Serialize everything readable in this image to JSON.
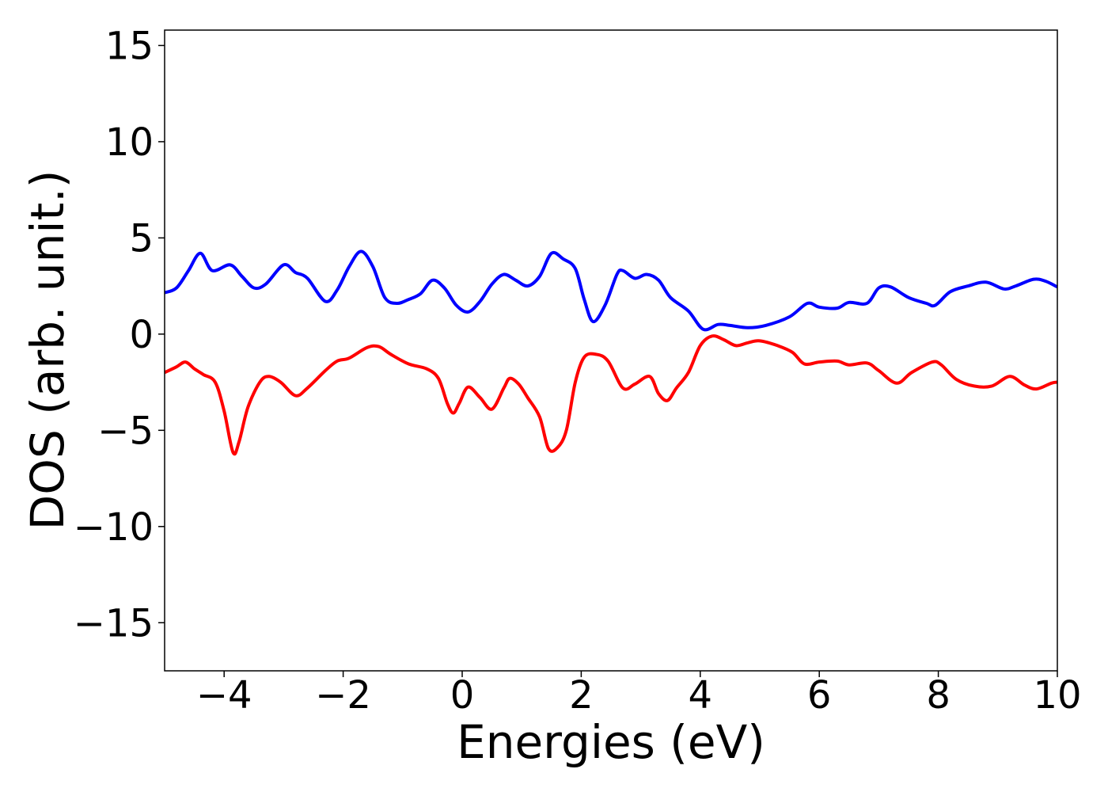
{
  "chart_data": {
    "type": "line",
    "xlabel": "Energies (eV)",
    "ylabel": "DOS (arb. unit.)",
    "xlim": [
      -5,
      10
    ],
    "ylim": [
      -17.5,
      15.8
    ],
    "xticks": [
      -4,
      -2,
      0,
      2,
      4,
      6,
      8,
      10
    ],
    "yticks": [
      -15,
      -10,
      -5,
      0,
      5,
      10,
      15
    ],
    "xtick_labels": [
      "−4",
      "−2",
      "0",
      "2",
      "4",
      "6",
      "8",
      "10"
    ],
    "ytick_labels": [
      "−15",
      "−10",
      "−5",
      "0",
      "5",
      "10",
      "15"
    ],
    "grid": false,
    "series": [
      {
        "color": "#0000ff",
        "points": [
          [
            -5.0,
            2.15
          ],
          [
            -4.8,
            2.4
          ],
          [
            -4.6,
            3.3
          ],
          [
            -4.4,
            4.2
          ],
          [
            -4.2,
            3.3
          ],
          [
            -3.9,
            3.6
          ],
          [
            -3.7,
            3.0
          ],
          [
            -3.5,
            2.4
          ],
          [
            -3.3,
            2.6
          ],
          [
            -3.0,
            3.6
          ],
          [
            -2.8,
            3.2
          ],
          [
            -2.6,
            2.9
          ],
          [
            -2.3,
            1.7
          ],
          [
            -2.1,
            2.3
          ],
          [
            -1.9,
            3.5
          ],
          [
            -1.7,
            4.3
          ],
          [
            -1.5,
            3.5
          ],
          [
            -1.3,
            1.9
          ],
          [
            -1.1,
            1.6
          ],
          [
            -0.9,
            1.8
          ],
          [
            -0.7,
            2.1
          ],
          [
            -0.5,
            2.8
          ],
          [
            -0.3,
            2.4
          ],
          [
            -0.1,
            1.5
          ],
          [
            0.1,
            1.15
          ],
          [
            0.3,
            1.7
          ],
          [
            0.5,
            2.6
          ],
          [
            0.7,
            3.1
          ],
          [
            0.9,
            2.8
          ],
          [
            1.1,
            2.5
          ],
          [
            1.3,
            3.0
          ],
          [
            1.5,
            4.2
          ],
          [
            1.7,
            3.9
          ],
          [
            1.9,
            3.4
          ],
          [
            2.05,
            1.8
          ],
          [
            2.2,
            0.65
          ],
          [
            2.4,
            1.5
          ],
          [
            2.6,
            3.1
          ],
          [
            2.7,
            3.3
          ],
          [
            2.9,
            2.9
          ],
          [
            3.1,
            3.1
          ],
          [
            3.3,
            2.8
          ],
          [
            3.5,
            1.9
          ],
          [
            3.8,
            1.2
          ],
          [
            4.05,
            0.25
          ],
          [
            4.3,
            0.5
          ],
          [
            4.5,
            0.45
          ],
          [
            4.8,
            0.33
          ],
          [
            5.1,
            0.45
          ],
          [
            5.5,
            0.9
          ],
          [
            5.8,
            1.6
          ],
          [
            6.0,
            1.4
          ],
          [
            6.3,
            1.35
          ],
          [
            6.5,
            1.65
          ],
          [
            6.8,
            1.6
          ],
          [
            7.0,
            2.4
          ],
          [
            7.2,
            2.45
          ],
          [
            7.5,
            1.9
          ],
          [
            7.8,
            1.6
          ],
          [
            7.95,
            1.5
          ],
          [
            8.2,
            2.2
          ],
          [
            8.5,
            2.5
          ],
          [
            8.8,
            2.7
          ],
          [
            9.1,
            2.35
          ],
          [
            9.3,
            2.5
          ],
          [
            9.6,
            2.85
          ],
          [
            9.8,
            2.75
          ],
          [
            10.0,
            2.45
          ]
        ]
      },
      {
        "color": "#ff0000",
        "points": [
          [
            -5.0,
            -2.0
          ],
          [
            -4.8,
            -1.7
          ],
          [
            -4.65,
            -1.45
          ],
          [
            -4.5,
            -1.8
          ],
          [
            -4.35,
            -2.1
          ],
          [
            -4.15,
            -2.5
          ],
          [
            -4.0,
            -4.0
          ],
          [
            -3.85,
            -6.15
          ],
          [
            -3.75,
            -5.6
          ],
          [
            -3.6,
            -3.8
          ],
          [
            -3.4,
            -2.5
          ],
          [
            -3.25,
            -2.2
          ],
          [
            -3.05,
            -2.5
          ],
          [
            -2.8,
            -3.2
          ],
          [
            -2.6,
            -2.8
          ],
          [
            -2.3,
            -1.9
          ],
          [
            -2.1,
            -1.4
          ],
          [
            -1.9,
            -1.25
          ],
          [
            -1.6,
            -0.7
          ],
          [
            -1.4,
            -0.65
          ],
          [
            -1.2,
            -1.05
          ],
          [
            -0.9,
            -1.55
          ],
          [
            -0.6,
            -1.8
          ],
          [
            -0.4,
            -2.3
          ],
          [
            -0.25,
            -3.6
          ],
          [
            -0.15,
            -4.1
          ],
          [
            -0.05,
            -3.6
          ],
          [
            0.1,
            -2.75
          ],
          [
            0.3,
            -3.3
          ],
          [
            0.5,
            -3.9
          ],
          [
            0.7,
            -2.8
          ],
          [
            0.8,
            -2.3
          ],
          [
            0.95,
            -2.6
          ],
          [
            1.1,
            -3.3
          ],
          [
            1.3,
            -4.3
          ],
          [
            1.45,
            -5.95
          ],
          [
            1.6,
            -5.9
          ],
          [
            1.75,
            -5.0
          ],
          [
            1.9,
            -2.5
          ],
          [
            2.05,
            -1.2
          ],
          [
            2.25,
            -1.05
          ],
          [
            2.45,
            -1.4
          ],
          [
            2.7,
            -2.8
          ],
          [
            2.9,
            -2.6
          ],
          [
            3.15,
            -2.2
          ],
          [
            3.3,
            -3.1
          ],
          [
            3.45,
            -3.45
          ],
          [
            3.6,
            -2.8
          ],
          [
            3.8,
            -2.0
          ],
          [
            4.0,
            -0.6
          ],
          [
            4.2,
            -0.1
          ],
          [
            4.4,
            -0.3
          ],
          [
            4.6,
            -0.6
          ],
          [
            4.8,
            -0.45
          ],
          [
            5.0,
            -0.35
          ],
          [
            5.3,
            -0.6
          ],
          [
            5.55,
            -0.95
          ],
          [
            5.75,
            -1.55
          ],
          [
            6.0,
            -1.45
          ],
          [
            6.3,
            -1.4
          ],
          [
            6.5,
            -1.6
          ],
          [
            6.8,
            -1.5
          ],
          [
            7.0,
            -1.9
          ],
          [
            7.3,
            -2.55
          ],
          [
            7.55,
            -2.0
          ],
          [
            7.9,
            -1.45
          ],
          [
            8.05,
            -1.6
          ],
          [
            8.3,
            -2.35
          ],
          [
            8.6,
            -2.7
          ],
          [
            8.9,
            -2.7
          ],
          [
            9.2,
            -2.2
          ],
          [
            9.45,
            -2.65
          ],
          [
            9.65,
            -2.85
          ],
          [
            9.9,
            -2.55
          ],
          [
            10.0,
            -2.5
          ]
        ]
      }
    ]
  }
}
